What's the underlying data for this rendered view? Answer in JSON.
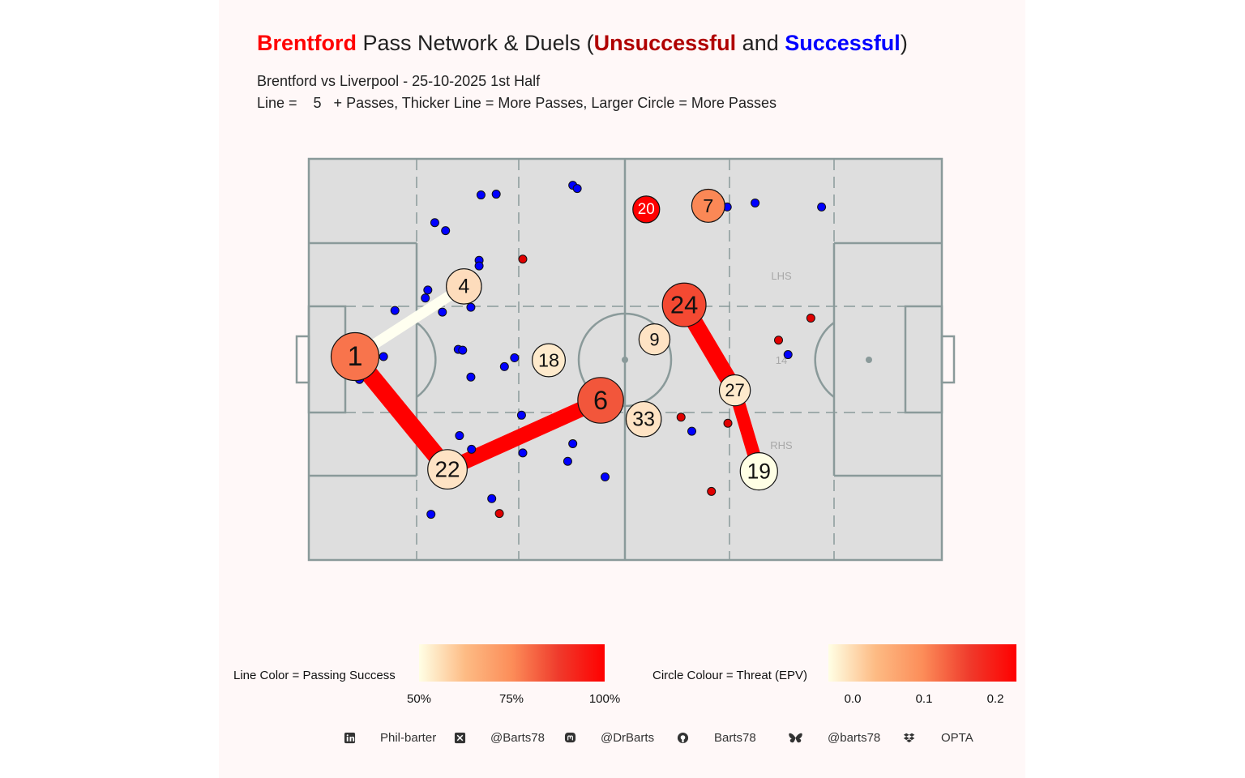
{
  "title": {
    "team": "Brentford",
    "mid": " Pass Network & Duels (",
    "unsuccessful": "Unsuccessful",
    "and": " and ",
    "successful": "Successful",
    "close": ")",
    "team_color": "#ff0000",
    "unsuccessful_color": "#b00000",
    "successful_color": "#0000ff"
  },
  "subtitle_line1": "Brentford vs Liverpool - 25-10-2025 1st Half",
  "subtitle_line2": "Line =    5   + Passes, Thicker Line = More Passes, Larger Circle = More Passes",
  "pitch_labels": {
    "lhs": "LHS",
    "rhs": "RHS",
    "centre": "14"
  },
  "chart_data": {
    "type": "scatter",
    "description_axes": {
      "xlim": [
        0,
        100
      ],
      "ylim": [
        0,
        100
      ]
    },
    "players": [
      {
        "number": "1",
        "x": 7.3,
        "y": 50.7,
        "passes": 30,
        "epv": 0.14
      },
      {
        "number": "4",
        "x": 24.5,
        "y": 68.2,
        "passes": 18,
        "epv": 0.05
      },
      {
        "number": "22",
        "x": 21.9,
        "y": 22.6,
        "passes": 22,
        "epv": 0.04
      },
      {
        "number": "6",
        "x": 46.1,
        "y": 39.8,
        "passes": 28,
        "epv": 0.17
      },
      {
        "number": "18",
        "x": 37.9,
        "y": 49.8,
        "passes": 16,
        "epv": 0.03
      },
      {
        "number": "33",
        "x": 52.9,
        "y": 35.1,
        "passes": 18,
        "epv": 0.04
      },
      {
        "number": "9",
        "x": 54.6,
        "y": 55.0,
        "passes": 14,
        "epv": 0.04
      },
      {
        "number": "24",
        "x": 59.3,
        "y": 63.6,
        "passes": 26,
        "epv": 0.18
      },
      {
        "number": "27",
        "x": 67.3,
        "y": 42.3,
        "passes": 14,
        "epv": 0.03
      },
      {
        "number": "19",
        "x": 71.1,
        "y": 22.1,
        "passes": 20,
        "epv": 0.0
      },
      {
        "number": "7",
        "x": 63.1,
        "y": 88.3,
        "passes": 16,
        "epv": 0.12
      },
      {
        "number": "20",
        "x": 53.3,
        "y": 87.4,
        "passes": 10,
        "epv": 0.23
      }
    ],
    "pass_links": [
      {
        "from": "1",
        "to": "4",
        "passes": 6,
        "success": 0.5
      },
      {
        "from": "1",
        "to": "22",
        "passes": 12,
        "success": 1.0
      },
      {
        "from": "22",
        "to": "6",
        "passes": 10,
        "success": 1.0
      },
      {
        "from": "24",
        "to": "27",
        "passes": 11,
        "success": 1.0
      },
      {
        "from": "27",
        "to": "19",
        "passes": 8,
        "success": 1.0
      }
    ],
    "duels": [
      {
        "x": 27.2,
        "y": 91.0,
        "won": true
      },
      {
        "x": 29.6,
        "y": 91.2,
        "won": true
      },
      {
        "x": 41.7,
        "y": 93.4,
        "won": true
      },
      {
        "x": 42.4,
        "y": 92.6,
        "won": true
      },
      {
        "x": 19.9,
        "y": 84.1,
        "won": true
      },
      {
        "x": 21.6,
        "y": 82.1,
        "won": true
      },
      {
        "x": 66.1,
        "y": 88.0,
        "won": true
      },
      {
        "x": 70.5,
        "y": 89.0,
        "won": true
      },
      {
        "x": 81.0,
        "y": 88.0,
        "won": true
      },
      {
        "x": 33.8,
        "y": 75.0,
        "won": false
      },
      {
        "x": 26.9,
        "y": 74.7,
        "won": true
      },
      {
        "x": 26.9,
        "y": 73.3,
        "won": true
      },
      {
        "x": 18.8,
        "y": 67.3,
        "won": true
      },
      {
        "x": 18.4,
        "y": 65.3,
        "won": true
      },
      {
        "x": 13.6,
        "y": 62.2,
        "won": true
      },
      {
        "x": 21.1,
        "y": 61.8,
        "won": true
      },
      {
        "x": 25.6,
        "y": 63.0,
        "won": true
      },
      {
        "x": 11.8,
        "y": 50.7,
        "won": true
      },
      {
        "x": 23.6,
        "y": 52.5,
        "won": true
      },
      {
        "x": 24.3,
        "y": 52.3,
        "won": true
      },
      {
        "x": 32.5,
        "y": 50.4,
        "won": true
      },
      {
        "x": 30.9,
        "y": 48.2,
        "won": true
      },
      {
        "x": 25.6,
        "y": 45.6,
        "won": true
      },
      {
        "x": 8.0,
        "y": 45.0,
        "won": true
      },
      {
        "x": 33.6,
        "y": 36.1,
        "won": true
      },
      {
        "x": 23.8,
        "y": 31.0,
        "won": true
      },
      {
        "x": 25.7,
        "y": 27.6,
        "won": true
      },
      {
        "x": 33.8,
        "y": 26.7,
        "won": true
      },
      {
        "x": 41.7,
        "y": 29.0,
        "won": true
      },
      {
        "x": 40.9,
        "y": 24.6,
        "won": true
      },
      {
        "x": 46.8,
        "y": 20.7,
        "won": true
      },
      {
        "x": 28.9,
        "y": 15.3,
        "won": true
      },
      {
        "x": 19.3,
        "y": 11.4,
        "won": true
      },
      {
        "x": 30.1,
        "y": 11.6,
        "won": false
      },
      {
        "x": 74.2,
        "y": 54.8,
        "won": false
      },
      {
        "x": 79.3,
        "y": 60.3,
        "won": false
      },
      {
        "x": 75.7,
        "y": 51.2,
        "won": true
      },
      {
        "x": 58.8,
        "y": 35.6,
        "won": false
      },
      {
        "x": 60.5,
        "y": 32.1,
        "won": true
      },
      {
        "x": 66.2,
        "y": 34.1,
        "won": false
      },
      {
        "x": 63.6,
        "y": 17.1,
        "won": false
      }
    ]
  },
  "legend_line": {
    "title": "Line Color = Passing Success",
    "ticks": [
      "50%",
      "75%",
      "100%"
    ],
    "colors": [
      "#ffffe5",
      "#fc8d59",
      "#ff0000"
    ]
  },
  "legend_circle": {
    "title": "Circle Colour = Threat (EPV)",
    "ticks": [
      "0.0",
      "0.1",
      "0.2"
    ],
    "colors": [
      "#ffffe5",
      "#fc8d59",
      "#ff0000"
    ]
  },
  "footer": {
    "linkedin": "Phil-barter",
    "x": "@Barts78",
    "mastodon": "@DrBarts",
    "github": "Barts78",
    "bluesky": "@barts78",
    "dropbox": "OPTA",
    "linkedin_icon": "linkedin-icon",
    "x_icon": "x-icon",
    "mastodon_icon": "mastodon-icon",
    "github_icon": "github-icon",
    "bluesky_icon": "bluesky-icon",
    "dropbox_icon": "dropbox-icon"
  }
}
